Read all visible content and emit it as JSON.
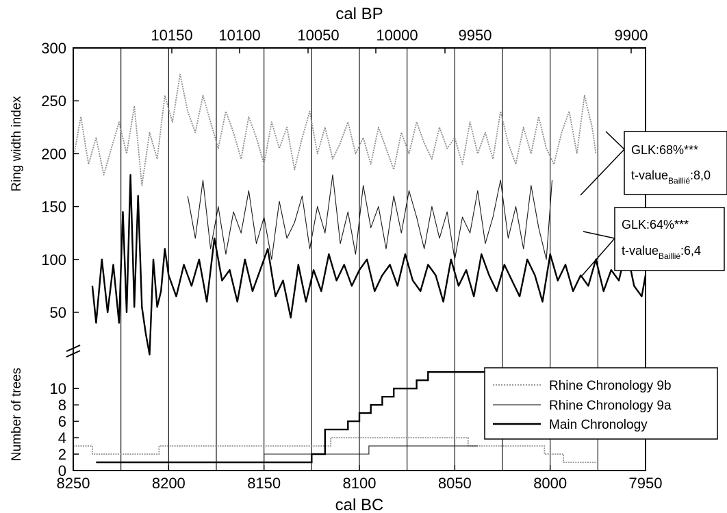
{
  "chart_data": {
    "type": "line",
    "x_axis": {
      "label": "cal BC",
      "range": [
        8250,
        7950
      ],
      "reversed": true,
      "ticks": [
        8250,
        8200,
        8150,
        8100,
        8050,
        8000,
        7950
      ],
      "tick_labels": [
        "8250",
        "8200",
        "8150",
        "8100",
        "8050",
        "8000",
        "7950"
      ]
    },
    "x2_axis": {
      "label": "cal BP",
      "tick_labels": [
        "10150",
        "10100",
        "10050",
        "10000",
        "9950",
        "9900"
      ]
    },
    "upper_panel": {
      "ylabel": "Ring width index",
      "ylim": [
        15,
        300
      ],
      "ticks": [
        50,
        100,
        150,
        200,
        250,
        300
      ],
      "tick_labels": [
        "50",
        "100",
        "150",
        "200",
        "250",
        "300"
      ]
    },
    "lower_panel": {
      "ylabel": "Number of trees",
      "ylim": [
        0,
        12
      ],
      "ticks": [
        0,
        2,
        4,
        6,
        8,
        10
      ],
      "tick_labels": [
        "0",
        "2",
        "4",
        "6",
        "8",
        "10"
      ]
    },
    "vertical_gridlines": [
      8225,
      8200,
      8175,
      8150,
      8125,
      8100,
      8075,
      8050,
      8025,
      8000,
      7975
    ],
    "series": [
      {
        "name": "Rhine Chronology 9b",
        "style": "gray-dotted",
        "ring_width": {
          "x": [
            8250,
            8246,
            8242,
            8238,
            8234,
            8230,
            8226,
            8222,
            8218,
            8214,
            8210,
            8206,
            8202,
            8198,
            8194,
            8190,
            8186,
            8182,
            8178,
            8174,
            8170,
            8166,
            8162,
            8158,
            8154,
            8150,
            8146,
            8142,
            8138,
            8134,
            8130,
            8126,
            8122,
            8118,
            8114,
            8110,
            8106,
            8102,
            8098,
            8094,
            8090,
            8086,
            8082,
            8078,
            8074,
            8070,
            8066,
            8062,
            8058,
            8054,
            8050,
            8046,
            8042,
            8038,
            8034,
            8030,
            8026,
            8022,
            8018,
            8014,
            8010,
            8006,
            8002,
            7998,
            7994,
            7990,
            7986,
            7982,
            7978,
            7976
          ],
          "y": [
            195,
            235,
            190,
            215,
            180,
            205,
            230,
            200,
            245,
            170,
            220,
            195,
            255,
            230,
            275,
            240,
            220,
            255,
            230,
            205,
            240,
            220,
            195,
            235,
            215,
            190,
            230,
            205,
            225,
            185,
            215,
            240,
            200,
            225,
            195,
            210,
            230,
            200,
            215,
            190,
            225,
            205,
            185,
            220,
            200,
            230,
            210,
            195,
            225,
            205,
            215,
            190,
            230,
            200,
            220,
            195,
            240,
            210,
            190,
            225,
            200,
            235,
            205,
            190,
            220,
            240,
            200,
            255,
            225,
            200
          ]
        },
        "trees": {
          "x": [
            8250,
            8240,
            8240,
            8205,
            8205,
            8115,
            8115,
            8043,
            8043,
            8003,
            8003,
            7993,
            7993,
            7976
          ],
          "y": [
            3,
            3,
            2,
            2,
            3,
            3,
            4,
            4,
            3,
            3,
            2,
            2,
            1,
            1
          ]
        }
      },
      {
        "name": "Rhine Chronology 9a",
        "style": "thin-solid",
        "ring_width": {
          "x": [
            8190,
            8186,
            8182,
            8178,
            8174,
            8170,
            8166,
            8162,
            8158,
            8154,
            8150,
            8146,
            8142,
            8138,
            8134,
            8130,
            8126,
            8122,
            8118,
            8114,
            8110,
            8106,
            8102,
            8098,
            8094,
            8090,
            8086,
            8082,
            8078,
            8074,
            8070,
            8066,
            8062,
            8058,
            8054,
            8050,
            8046,
            8042,
            8038,
            8034,
            8030,
            8026,
            8022,
            8018,
            8014,
            8010,
            8006,
            8002,
            7999
          ],
          "y": [
            160,
            120,
            175,
            110,
            150,
            105,
            145,
            125,
            165,
            115,
            140,
            100,
            155,
            120,
            135,
            160,
            110,
            150,
            125,
            180,
            115,
            145,
            105,
            170,
            130,
            150,
            110,
            160,
            125,
            165,
            140,
            110,
            150,
            120,
            145,
            100,
            140,
            125,
            165,
            115,
            140,
            175,
            120,
            150,
            110,
            170,
            130,
            100,
            175
          ]
        },
        "trees": {
          "x": [
            8150,
            8150,
            8095,
            8095,
            8038,
            8038
          ],
          "y": [
            1,
            2,
            2,
            3,
            3,
            3
          ]
        }
      },
      {
        "name": "Main Chronology",
        "style": "thick-solid",
        "ring_width": {
          "x": [
            8240,
            8238,
            8235,
            8232,
            8229,
            8226,
            8224,
            8222,
            8220,
            8218,
            8216,
            8214,
            8212,
            8210,
            8208,
            8206,
            8204,
            8202,
            8200,
            8196,
            8192,
            8188,
            8184,
            8180,
            8176,
            8172,
            8168,
            8164,
            8160,
            8156,
            8152,
            8148,
            8144,
            8140,
            8136,
            8132,
            8128,
            8124,
            8120,
            8116,
            8112,
            8108,
            8104,
            8100,
            8096,
            8092,
            8088,
            8084,
            8080,
            8076,
            8072,
            8068,
            8064,
            8060,
            8056,
            8052,
            8048,
            8044,
            8040,
            8036,
            8032,
            8028,
            8024,
            8020,
            8016,
            8012,
            8008,
            8004,
            8000,
            7996,
            7992,
            7988,
            7984,
            7980,
            7976,
            7972,
            7968,
            7964,
            7960,
            7956,
            7952,
            7950
          ],
          "y": [
            75,
            40,
            100,
            50,
            95,
            40,
            145,
            50,
            180,
            55,
            160,
            55,
            30,
            10,
            100,
            55,
            70,
            110,
            85,
            65,
            95,
            75,
            100,
            60,
            120,
            80,
            90,
            60,
            100,
            70,
            90,
            110,
            65,
            80,
            45,
            95,
            60,
            90,
            70,
            105,
            80,
            95,
            75,
            90,
            100,
            70,
            85,
            95,
            75,
            105,
            80,
            70,
            95,
            85,
            60,
            100,
            75,
            90,
            65,
            105,
            85,
            70,
            95,
            80,
            65,
            100,
            85,
            60,
            105,
            80,
            95,
            70,
            85,
            75,
            100,
            70,
            90,
            80,
            110,
            75,
            65,
            85
          ]
        },
        "trees": {
          "x": [
            8238,
            8125,
            8125,
            8118,
            8118,
            8112,
            8112,
            8106,
            8106,
            8100,
            8100,
            8094,
            8094,
            8088,
            8088,
            8082,
            8082,
            8076,
            8076,
            8070,
            8070,
            8064,
            8064,
            8058,
            8058,
            8052,
            8052,
            8004,
            8004,
            7992,
            7992,
            7970
          ],
          "y": [
            1,
            1,
            2,
            2,
            5,
            5,
            5,
            5,
            6,
            6,
            7,
            7,
            8,
            8,
            9,
            9,
            10,
            10,
            10,
            10,
            11,
            11,
            12,
            12,
            12,
            12,
            12,
            12,
            11,
            11,
            12,
            12
          ]
        }
      }
    ],
    "annotations": [
      {
        "line1": "GLK:68%***",
        "line2_prefix": "t-value",
        "line2_sub": "Baillié",
        "line2_suffix": ":8,0"
      },
      {
        "line1": "GLK:64%***",
        "line2_prefix": "t-value",
        "line2_sub": "Baillié",
        "line2_suffix": ":6,4"
      }
    ],
    "legend": {
      "position": "lower-right"
    },
    "grid": "vertical-lines-only"
  }
}
